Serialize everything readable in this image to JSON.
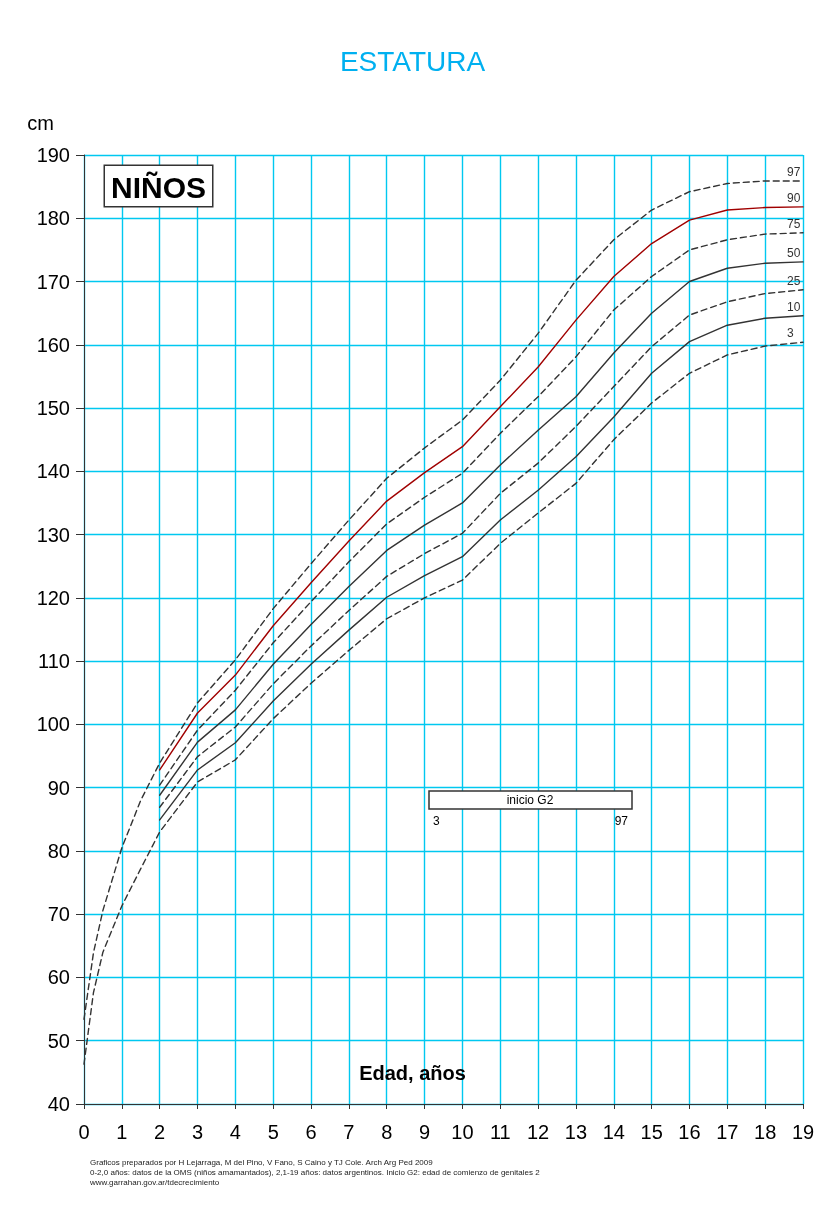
{
  "chart_data": {
    "type": "line",
    "title": "ESTATURA",
    "xlabel": "Edad, años",
    "ylabel": "cm",
    "xlim": [
      0,
      19
    ],
    "xticks": [
      0,
      1,
      2,
      3,
      4,
      5,
      6,
      7,
      8,
      9,
      10,
      11,
      12,
      13,
      14,
      15,
      16,
      17,
      18,
      19
    ],
    "ylim": [
      40,
      190
    ],
    "yticks": [
      40,
      50,
      60,
      70,
      80,
      90,
      100,
      110,
      120,
      130,
      140,
      150,
      160,
      170,
      180,
      190
    ],
    "grid": true,
    "legend": false,
    "marker": "none",
    "series": [
      {
        "name": "97",
        "color": "#333333",
        "line_style": "dashed",
        "x": [
          0,
          0.25,
          0.5,
          1,
          1.5,
          2,
          3,
          4,
          5,
          6,
          7,
          8,
          9,
          10,
          11,
          12,
          13,
          14,
          15,
          16,
          17,
          18,
          19
        ],
        "values": [
          53.4,
          63.9,
          70.6,
          80.5,
          88.0,
          93.9,
          103.4,
          110.2,
          118.3,
          125.4,
          132.3,
          138.9,
          143.7,
          148.1,
          154.4,
          161.8,
          170.2,
          176.6,
          181.3,
          184.2,
          185.5,
          185.9,
          185.9
        ]
      },
      {
        "name": "90",
        "color": "#a00000",
        "line_style": "solid",
        "x": [
          2,
          3,
          4,
          5,
          6,
          7,
          8,
          9,
          10,
          11,
          12,
          13,
          14,
          15,
          16,
          17,
          18,
          19
        ],
        "values": [
          92.8,
          101.8,
          107.8,
          115.6,
          122.4,
          129.0,
          135.3,
          139.8,
          143.9,
          150.2,
          156.5,
          163.9,
          170.8,
          176.0,
          179.7,
          181.3,
          181.7,
          181.8
        ]
      },
      {
        "name": "75",
        "color": "#333333",
        "line_style": "dashed",
        "x": [
          2,
          3,
          4,
          5,
          6,
          7,
          8,
          9,
          10,
          11,
          12,
          13,
          14,
          15,
          16,
          17,
          18,
          19
        ],
        "values": [
          90.4,
          99.1,
          105.4,
          112.9,
          119.4,
          125.7,
          131.7,
          135.9,
          139.7,
          146.0,
          151.8,
          158.1,
          165.5,
          170.8,
          175.0,
          176.6,
          177.5,
          177.7
        ]
      },
      {
        "name": "50",
        "color": "#333333",
        "line_style": "solid",
        "x": [
          2,
          3,
          4,
          5,
          6,
          7,
          8,
          9,
          10,
          11,
          12,
          13,
          14,
          15,
          16,
          17,
          18,
          19
        ],
        "values": [
          88.8,
          97.2,
          102.3,
          109.5,
          115.8,
          121.8,
          127.5,
          131.5,
          135.0,
          141.0,
          146.5,
          151.8,
          158.7,
          165.0,
          170.0,
          172.1,
          172.9,
          173.1
        ]
      },
      {
        "name": "25",
        "color": "#333333",
        "line_style": "dashed",
        "x": [
          2,
          3,
          4,
          5,
          6,
          7,
          8,
          9,
          10,
          11,
          12,
          13,
          14,
          15,
          16,
          17,
          18,
          19
        ],
        "values": [
          86.9,
          94.9,
          99.6,
          106.4,
          112.4,
          118.0,
          123.4,
          127.0,
          130.2,
          136.5,
          141.3,
          147.1,
          153.4,
          159.7,
          164.7,
          166.8,
          168.1,
          168.7
        ]
      },
      {
        "name": "10",
        "color": "#333333",
        "line_style": "solid",
        "x": [
          2,
          3,
          4,
          5,
          6,
          7,
          8,
          9,
          10,
          11,
          12,
          13,
          14,
          15,
          16,
          17,
          18,
          19
        ],
        "values": [
          84.9,
          92.8,
          97.1,
          103.7,
          109.5,
          114.9,
          120.1,
          123.5,
          126.5,
          132.3,
          137.0,
          142.3,
          148.6,
          155.5,
          160.5,
          163.1,
          164.2,
          164.6
        ]
      },
      {
        "name": "3",
        "color": "#333333",
        "line_style": "dashed",
        "x": [
          0,
          0.25,
          0.5,
          1,
          1.5,
          2,
          3,
          4,
          5,
          6,
          7,
          8,
          9,
          10,
          11,
          12,
          13,
          14,
          15,
          16,
          17,
          18,
          19
        ],
        "values": [
          46.3,
          57.6,
          64.0,
          71.3,
          77.2,
          83.0,
          90.9,
          94.4,
          100.9,
          106.5,
          111.7,
          116.7,
          120.0,
          122.8,
          128.6,
          133.4,
          138.1,
          145.0,
          150.8,
          155.5,
          158.4,
          159.8,
          160.4
        ]
      }
    ],
    "annotations": [
      "NIÑOS",
      "Graficos preparados por H Lejarraga, M del Pino, V Fano, S Caino y TJ Cole. Arch Arg Ped 2009",
      "0-2,0 años: datos de la OMS (niños amamantados), 2,1-19 años: datos argentinos. Inicio G2: edad de comienzo de genitales 2",
      "www.garrahan.gov.ar/tdecrecimiento",
      "inicio G2",
      "3",
      "97"
    ]
  }
}
